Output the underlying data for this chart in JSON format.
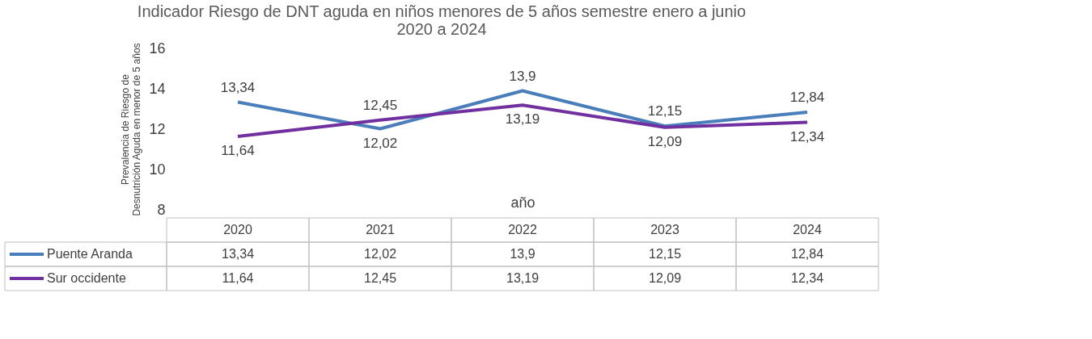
{
  "chart_data": {
    "type": "line",
    "title": "Indicador Riesgo de DNT  aguda en niños menores de 5 años  semestre enero a junio\n2020 a 2024",
    "xlabel": "año",
    "ylabel": "Prevalencia de Riesgo de\nDesnutrición Aguda en menor de 5 años",
    "categories": [
      "2020",
      "2021",
      "2022",
      "2023",
      "2024"
    ],
    "series": [
      {
        "name": "Puente Aranda",
        "color": "#4a7ebb",
        "values": [
          13.34,
          12.02,
          13.9,
          12.15,
          12.84
        ],
        "value_labels": [
          "13,34",
          "12,02",
          "13,9",
          "12,15",
          "12,84"
        ]
      },
      {
        "name": "Sur occidente",
        "color": "#7030a0",
        "values": [
          11.64,
          12.45,
          13.19,
          12.09,
          12.34
        ],
        "value_labels": [
          "11,64",
          "12,45",
          "13,19",
          "12,09",
          "12,34"
        ]
      }
    ],
    "ylim": [
      8,
      16
    ],
    "yticks": [
      8,
      10,
      12,
      14,
      16
    ],
    "grid": false,
    "legend": "bottom left",
    "line_style": "solid"
  }
}
